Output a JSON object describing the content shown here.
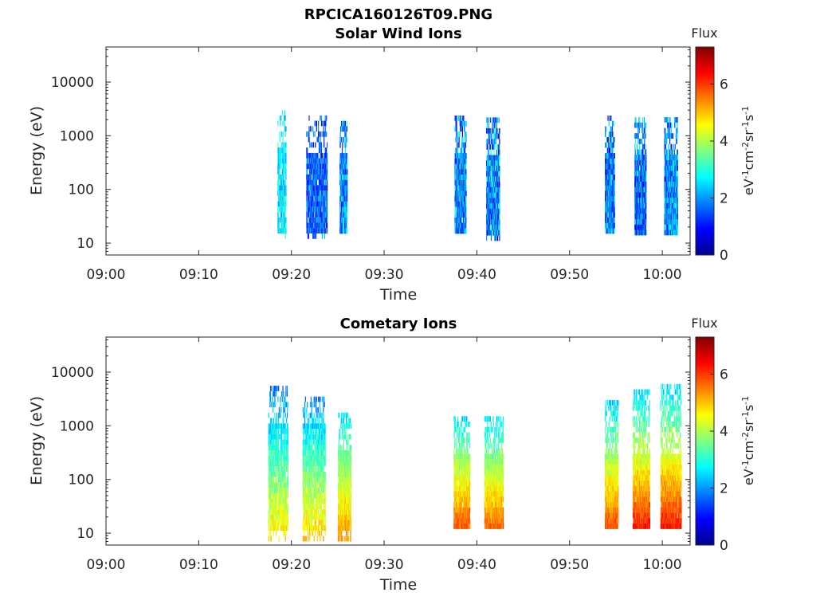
{
  "figure": {
    "title": "RPCICA160126T09.PNG"
  },
  "chart_data": [
    {
      "type": "heatmap",
      "title": "Solar Wind Ions",
      "xlabel": "Time",
      "ylabel": "Energy (eV)",
      "xticks": [
        "09:00",
        "09:10",
        "09:20",
        "09:30",
        "09:40",
        "09:50",
        "10:00"
      ],
      "xlim_minutes": [
        0,
        63
      ],
      "ylim": [
        6,
        45000
      ],
      "yscale": "log",
      "yticks": [
        10,
        100,
        1000,
        10000
      ],
      "ytick_labels": [
        "10",
        "100",
        "1000",
        "10000"
      ],
      "colorbar": {
        "label": "Flux",
        "unit": "eV-1cm-2sr-1s-1",
        "min": 0,
        "max": 7.3,
        "ticks": [
          0,
          2,
          4,
          6
        ],
        "ticklabels": [
          "0",
          "2",
          "4",
          "6"
        ],
        "colormap": "jet"
      },
      "bursts": [
        {
          "t": [
            18.5,
            19.4
          ],
          "e": [
            12,
            2600
          ],
          "f": [
            2.2,
            2.9
          ],
          "step_s": 4,
          "ec": [
            15,
            600
          ]
        },
        {
          "t": [
            21.6,
            23.8
          ],
          "e": [
            12,
            2100
          ],
          "f": [
            1.0,
            2.2
          ],
          "step_s": 4,
          "ec": [
            15,
            400
          ]
        },
        {
          "t": [
            25.2,
            26.0
          ],
          "e": [
            15,
            1700
          ],
          "f": [
            0.8,
            3.0
          ],
          "step_s": 2,
          "ec": [
            10,
            400
          ]
        },
        {
          "t": [
            37.6,
            38.8
          ],
          "e": [
            15,
            2000
          ],
          "f": [
            0.8,
            3.1
          ],
          "step_s": 2,
          "ec": [
            12,
            400
          ]
        },
        {
          "t": [
            41.0,
            42.4
          ],
          "e": [
            11,
            2100
          ],
          "f": [
            0.6,
            3.2
          ],
          "step_s": 2,
          "ec": [
            12,
            400
          ]
        },
        {
          "t": [
            53.8,
            54.8
          ],
          "e": [
            15,
            2200
          ],
          "f": [
            0.6,
            2.9
          ],
          "step_s": 2,
          "ec": [
            12,
            400
          ]
        },
        {
          "t": [
            57.0,
            58.2
          ],
          "e": [
            14,
            2100
          ],
          "f": [
            0.5,
            2.9
          ],
          "step_s": 2,
          "ec": [
            12,
            400
          ]
        },
        {
          "t": [
            60.2,
            61.6
          ],
          "e": [
            14,
            1900
          ],
          "f": [
            1.0,
            3.0
          ],
          "step_s": 2,
          "ec": [
            12,
            400
          ]
        }
      ]
    },
    {
      "type": "heatmap",
      "title": "Cometary Ions",
      "xlabel": "Time",
      "ylabel": "Energy (eV)",
      "xticks": [
        "09:00",
        "09:10",
        "09:20",
        "09:30",
        "09:40",
        "09:50",
        "10:00"
      ],
      "xlim_minutes": [
        0,
        63
      ],
      "ylim": [
        6,
        45000
      ],
      "yscale": "log",
      "yticks": [
        10,
        100,
        1000,
        10000
      ],
      "ytick_labels": [
        "10",
        "100",
        "1000",
        "10000"
      ],
      "colorbar": {
        "label": "Flux",
        "unit": "eV-1cm-2sr-1s-1",
        "min": 0,
        "max": 7.3,
        "ticks": [
          0,
          2,
          4,
          6
        ],
        "ticklabels": [
          "0",
          "2",
          "4",
          "6"
        ],
        "colormap": "jet"
      },
      "bursts": [
        {
          "t": [
            17.5,
            19.6
          ],
          "e": [
            7,
            4500
          ],
          "f": [
            1.8,
            4.8
          ],
          "step_s": 4,
          "ec": [
            10,
            1000
          ]
        },
        {
          "t": [
            21.2,
            23.6
          ],
          "e": [
            7,
            3500
          ],
          "f": [
            1.8,
            5.0
          ],
          "step_s": 4,
          "ec": [
            10,
            1000
          ]
        },
        {
          "t": [
            25.0,
            26.4
          ],
          "e": [
            7,
            1600
          ],
          "f": [
            2.5,
            5.4
          ],
          "step_s": 2,
          "ec": [
            10,
            300
          ]
        },
        {
          "t": [
            37.5,
            39.2
          ],
          "e": [
            12,
            1500
          ],
          "f": [
            2.5,
            5.8
          ],
          "step_s": 2,
          "ec": [
            10,
            300
          ]
        },
        {
          "t": [
            40.8,
            42.8
          ],
          "e": [
            12,
            1400
          ],
          "f": [
            2.5,
            5.6
          ],
          "step_s": 2,
          "ec": [
            10,
            300
          ]
        },
        {
          "t": [
            53.8,
            55.2
          ],
          "e": [
            12,
            2500
          ],
          "f": [
            2.4,
            5.8
          ],
          "step_s": 2,
          "ec": [
            10,
            300
          ]
        },
        {
          "t": [
            56.8,
            58.6
          ],
          "e": [
            12,
            3900
          ],
          "f": [
            2.4,
            6.2
          ],
          "step_s": 2,
          "ec": [
            10,
            300
          ]
        },
        {
          "t": [
            59.8,
            62.0
          ],
          "e": [
            12,
            5300
          ],
          "f": [
            2.4,
            6.2
          ],
          "step_s": 2,
          "ec": [
            10,
            300
          ]
        }
      ]
    }
  ]
}
